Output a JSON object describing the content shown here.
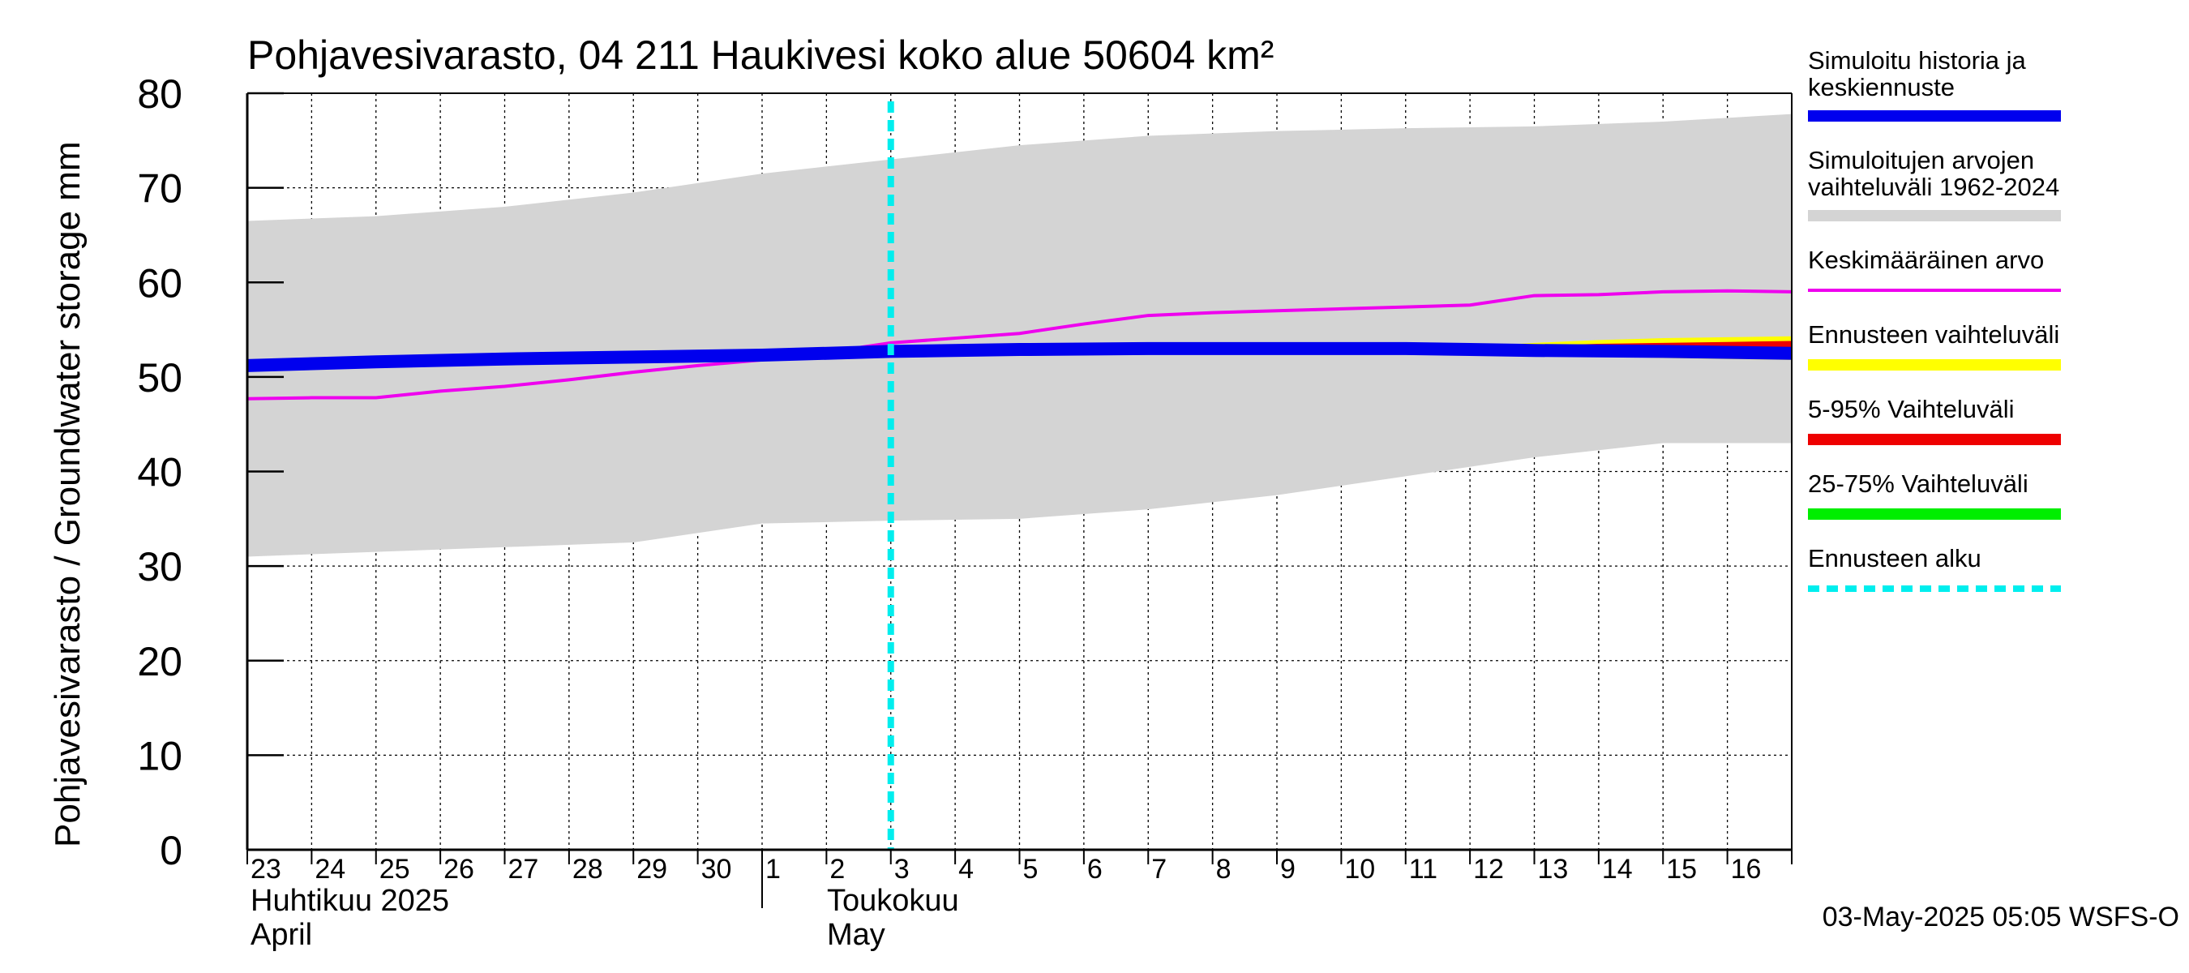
{
  "chart_data": {
    "type": "line",
    "title": "Pohjavesivarasto, 04 211 Haukivesi koko alue 50604 km²",
    "ylabel": "Pohjavesivarasto / Groundwater storage   mm",
    "ylim": [
      0,
      80
    ],
    "y_ticks": [
      "0",
      "10",
      "20",
      "30",
      "40",
      "50",
      "60",
      "70",
      "80"
    ],
    "grid": true,
    "x_day_range": [
      0,
      24
    ],
    "x_tick_labels": [
      "23",
      "24",
      "25",
      "26",
      "27",
      "28",
      "29",
      "30",
      "1",
      "2",
      "3",
      "4",
      "5",
      "6",
      "7",
      "8",
      "9",
      "10",
      "11",
      "12",
      "13",
      "14",
      "15",
      "16"
    ],
    "month_labels": [
      {
        "line1": "Huhtikuu  2025",
        "line2": "April",
        "start_day": 0
      },
      {
        "line1": "Toukokuu",
        "line2": "May",
        "start_day": 8
      }
    ],
    "forecast_start_day": 10.0,
    "footer": "03-May-2025 05:05 WSFS-O",
    "colors": {
      "history": "#0000ee",
      "range": "#d4d4d4",
      "mean": "#ee00ee",
      "forecast_range": "#ffff00",
      "p5_95": "#ee0000",
      "p25_75": "#00ee00",
      "forecast_start": "#00eeee"
    },
    "legend": {
      "placement": "right",
      "items": [
        {
          "line1": "Simuloitu historia ja",
          "line2": "keskiennuste",
          "style": "history"
        },
        {
          "line1": "Simuloitujen arvojen",
          "line2": "vaihteluväli 1962-2024",
          "style": "range"
        },
        {
          "line1": "Keskimääräinen arvo",
          "line2": "",
          "style": "mean"
        },
        {
          "line1": "Ennusteen vaihteluväli",
          "line2": "",
          "style": "forecast_range"
        },
        {
          "line1": "5-95% Vaihteluväli",
          "line2": "",
          "style": "p5_95"
        },
        {
          "line1": "25-75% Vaihteluväli",
          "line2": "",
          "style": "p25_75"
        },
        {
          "line1": "Ennusteen alku",
          "line2": "",
          "style": "forecast_start"
        }
      ]
    },
    "series": [
      {
        "name": "Simuloitujen arvojen vaihteluväli 1962-2024",
        "kind": "band",
        "x": [
          0,
          2,
          4,
          6,
          8,
          10,
          12,
          14,
          16,
          18,
          20,
          22,
          24
        ],
        "low": [
          31.0,
          31.5,
          32.0,
          32.5,
          34.5,
          34.8,
          35.0,
          36.0,
          37.5,
          39.5,
          41.5,
          43.0,
          43.0
        ],
        "high": [
          66.5,
          67.0,
          68.0,
          69.5,
          71.5,
          73.0,
          74.5,
          75.5,
          76.0,
          76.3,
          76.5,
          77.0,
          77.8
        ]
      },
      {
        "name": "Ennusteen vaihteluväli",
        "kind": "band",
        "x": [
          19,
          20,
          21,
          22,
          23,
          24
        ],
        "low": [
          52.8,
          52.5,
          52.2,
          52.0,
          51.9,
          51.8
        ],
        "high": [
          53.2,
          53.6,
          53.9,
          54.1,
          54.2,
          54.3
        ]
      },
      {
        "name": "5-95% Vaihteluväli",
        "kind": "band",
        "x": [
          19,
          20,
          21,
          22,
          23,
          24
        ],
        "low": [
          52.8,
          52.6,
          52.4,
          52.2,
          52.1,
          52.0
        ],
        "high": [
          53.1,
          53.3,
          53.5,
          53.6,
          53.7,
          53.8
        ]
      },
      {
        "name": "Keskimääräinen arvo",
        "kind": "line",
        "x": [
          0,
          1,
          2,
          3,
          4,
          5,
          6,
          7,
          8,
          9,
          10,
          11,
          12,
          13,
          14,
          15,
          16,
          17,
          18,
          19,
          20,
          21,
          22,
          23,
          24
        ],
        "y": [
          47.7,
          47.8,
          47.8,
          48.5,
          49.0,
          49.7,
          50.5,
          51.2,
          51.8,
          52.6,
          53.6,
          54.1,
          54.6,
          55.6,
          56.5,
          56.8,
          57.0,
          57.2,
          57.4,
          57.6,
          58.6,
          58.7,
          59.0,
          59.1,
          59.0
        ]
      },
      {
        "name": "Simuloitu historia ja keskiennuste",
        "kind": "line",
        "x": [
          0,
          2,
          4,
          6,
          8,
          10,
          12,
          14,
          16,
          18,
          19,
          20,
          22,
          24
        ],
        "y": [
          51.2,
          51.6,
          51.9,
          52.1,
          52.3,
          52.7,
          52.9,
          53.0,
          53.0,
          53.0,
          52.9,
          52.8,
          52.7,
          52.5
        ]
      }
    ]
  }
}
